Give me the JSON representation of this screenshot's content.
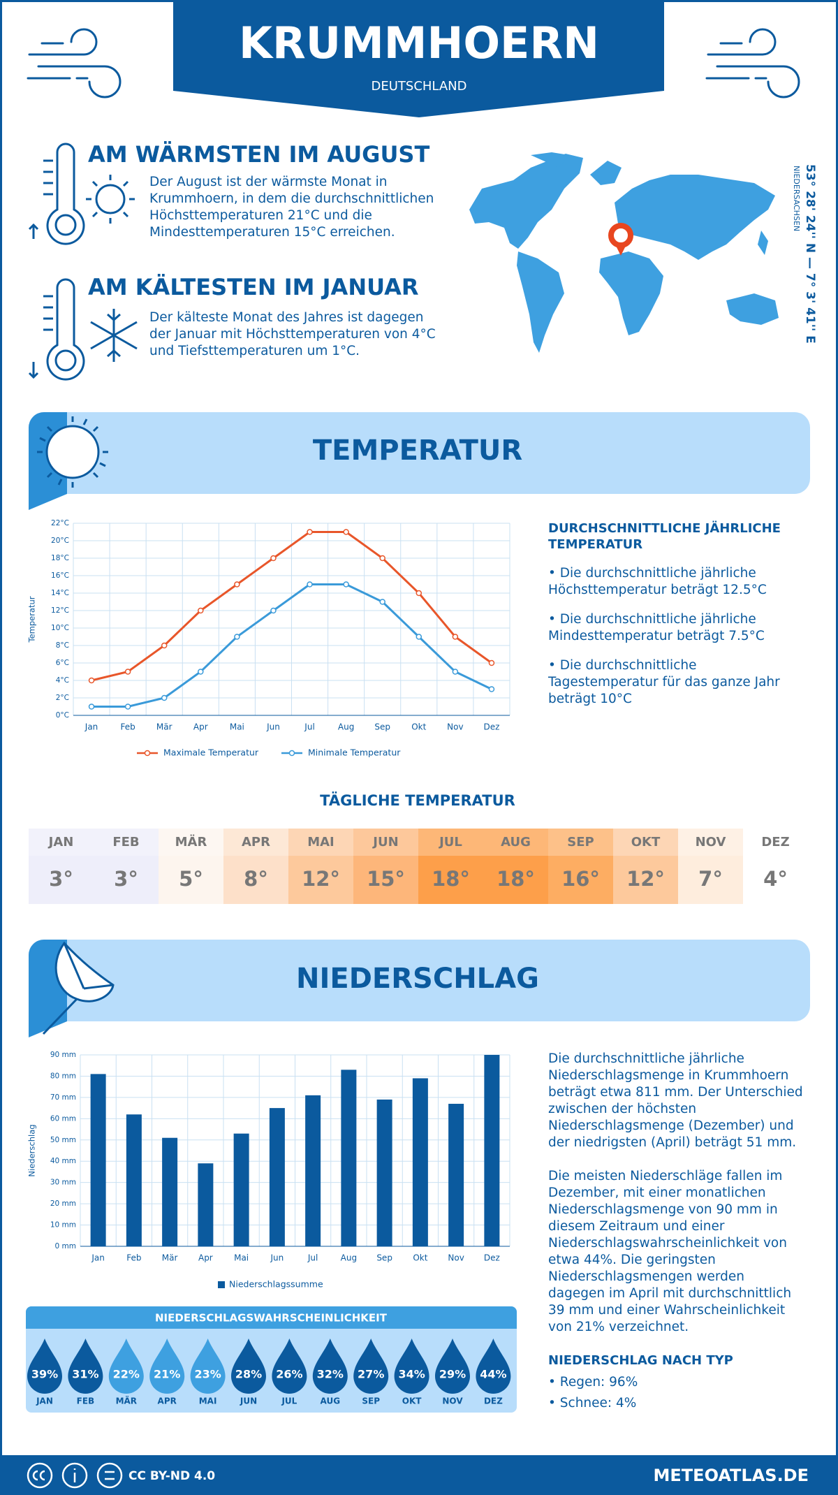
{
  "header": {
    "title": "KRUMMHOERN",
    "subtitle": "DEUTSCHLAND"
  },
  "warmest": {
    "title": "AM WÄRMSTEN IM AUGUST",
    "text": "Der August ist der wärmste Monat in Krummhoern, in dem die durchschnittlichen Höchsttemperaturen 21°C und die Mindesttemperaturen 15°C erreichen."
  },
  "coldest": {
    "title": "AM KÄLTESTEN IM JANUAR",
    "text": "Der kälteste Monat des Jahres ist dagegen der Januar mit Höchsttemperaturen von 4°C und Tiefsttemperaturen um 1°C."
  },
  "location": {
    "coordinates": "53° 28' 24'' N — 7° 3' 41'' E",
    "region": "NIEDERSACHSEN"
  },
  "temperature_section": {
    "title": "TEMPERATUR",
    "side_title": "DURCHSCHNITTLICHE JÄHRLICHE TEMPERATUR",
    "bullets": [
      "• Die durchschnittliche jährliche Höchsttemperatur beträgt 12.5°C",
      "• Die durchschnittliche jährliche Mindesttemperatur beträgt 7.5°C",
      "• Die durchschnittliche Tagestemperatur für das ganze Jahr beträgt 10°C"
    ]
  },
  "chart_data": [
    {
      "type": "line",
      "y_label": "Temperatur",
      "categories": [
        "Jan",
        "Feb",
        "Mär",
        "Apr",
        "Mai",
        "Jun",
        "Jul",
        "Aug",
        "Sep",
        "Okt",
        "Nov",
        "Dez"
      ],
      "series": [
        {
          "name": "Maximale Temperatur",
          "color": "#e8562a",
          "values": [
            4,
            5,
            8,
            12,
            15,
            18,
            21,
            21,
            18,
            14,
            9,
            6
          ]
        },
        {
          "name": "Minimale Temperatur",
          "color": "#3a9ad9",
          "values": [
            1,
            1,
            2,
            5,
            9,
            12,
            15,
            15,
            13,
            9,
            5,
            3
          ]
        }
      ],
      "ylim": [
        0,
        22
      ],
      "yticks": [
        {
          "value": 0,
          "label": "0°C"
        },
        {
          "value": 2,
          "label": "2°C"
        },
        {
          "value": 4,
          "label": "4°C"
        },
        {
          "value": 6,
          "label": "6°C"
        },
        {
          "value": 8,
          "label": "8°C"
        },
        {
          "value": 10,
          "label": "10°C"
        },
        {
          "value": 12,
          "label": "12°C"
        },
        {
          "value": 14,
          "label": "14°C"
        },
        {
          "value": 16,
          "label": "16°C"
        },
        {
          "value": 18,
          "label": "18°C"
        },
        {
          "value": 20,
          "label": "20°C"
        },
        {
          "value": 22,
          "label": "22°C"
        }
      ],
      "grid": true
    },
    {
      "type": "bar",
      "y_label": "Niederschlag",
      "categories": [
        "Jan",
        "Feb",
        "Mär",
        "Apr",
        "Mai",
        "Jun",
        "Jul",
        "Aug",
        "Sep",
        "Okt",
        "Nov",
        "Dez"
      ],
      "series": [
        {
          "name": "Niederschlagssumme",
          "color": "#0b5a9e",
          "values": [
            81,
            62,
            51,
            39,
            53,
            65,
            71,
            83,
            69,
            79,
            67,
            90
          ]
        }
      ],
      "ylim": [
        0,
        90
      ],
      "yticks": [
        {
          "value": 0,
          "label": "0 mm"
        },
        {
          "value": 10,
          "label": "10 mm"
        },
        {
          "value": 20,
          "label": "20 mm"
        },
        {
          "value": 30,
          "label": "30 mm"
        },
        {
          "value": 40,
          "label": "40 mm"
        },
        {
          "value": 50,
          "label": "50 mm"
        },
        {
          "value": 60,
          "label": "60 mm"
        },
        {
          "value": 70,
          "label": "70 mm"
        },
        {
          "value": 80,
          "label": "80 mm"
        },
        {
          "value": 90,
          "label": "90 mm"
        }
      ],
      "grid": true
    }
  ],
  "daily_temperature": {
    "title": "TÄGLICHE TEMPERATUR",
    "months": [
      "JAN",
      "FEB",
      "MÄR",
      "APR",
      "MAI",
      "JUN",
      "JUL",
      "AUG",
      "SEP",
      "OKT",
      "NOV",
      "DEZ"
    ],
    "values": [
      "3°",
      "3°",
      "5°",
      "8°",
      "12°",
      "15°",
      "18°",
      "18°",
      "16°",
      "12°",
      "7°",
      "4°"
    ],
    "colors": [
      "#eeeefa",
      "#eeeefa",
      "#fdf5ee",
      "#fde0c9",
      "#fdc99c",
      "#fdb67a",
      "#fd9f4a",
      "#fd9f4a",
      "#fdad62",
      "#fdc99c",
      "#feeddd",
      "#ffffff"
    ]
  },
  "precipitation_section": {
    "title": "NIEDERSCHLAG",
    "paragraphs": [
      "Die durchschnittliche jährliche Niederschlagsmenge in Krummhoern beträgt etwa 811 mm. Der Unterschied zwischen der höchsten Niederschlagsmenge (Dezember) und der niedrigsten (April) beträgt 51 mm.",
      "Die meisten Niederschläge fallen im Dezember, mit einer monatlichen Niederschlagsmenge von 90 mm in diesem Zeitraum und einer Niederschlagswahrscheinlichkeit von etwa 44%. Die geringsten Niederschlagsmengen werden dagegen im April mit durchschnittlich 39 mm und einer Wahrscheinlichkeit von 21% verzeichnet."
    ],
    "type_title": "NIEDERSCHLAG NACH TYP",
    "types": [
      "• Regen: 96%",
      "• Schnee: 4%"
    ]
  },
  "precipitation_probability": {
    "title": "NIEDERSCHLAGSWAHRSCHEINLICHKEIT",
    "months": [
      "JAN",
      "FEB",
      "MÄR",
      "APR",
      "MAI",
      "JUN",
      "JUL",
      "AUG",
      "SEP",
      "OKT",
      "NOV",
      "DEZ"
    ],
    "values": [
      "39%",
      "31%",
      "22%",
      "21%",
      "23%",
      "28%",
      "26%",
      "32%",
      "27%",
      "34%",
      "29%",
      "44%"
    ],
    "colors": [
      "#0b5a9e",
      "#0b5a9e",
      "#3ea0e0",
      "#3ea0e0",
      "#3ea0e0",
      "#0b5a9e",
      "#0b5a9e",
      "#0b5a9e",
      "#0b5a9e",
      "#0b5a9e",
      "#0b5a9e",
      "#0b5a9e"
    ]
  },
  "footer": {
    "license": "CC BY-ND 4.0",
    "site": "METEOATLAS.DE"
  }
}
